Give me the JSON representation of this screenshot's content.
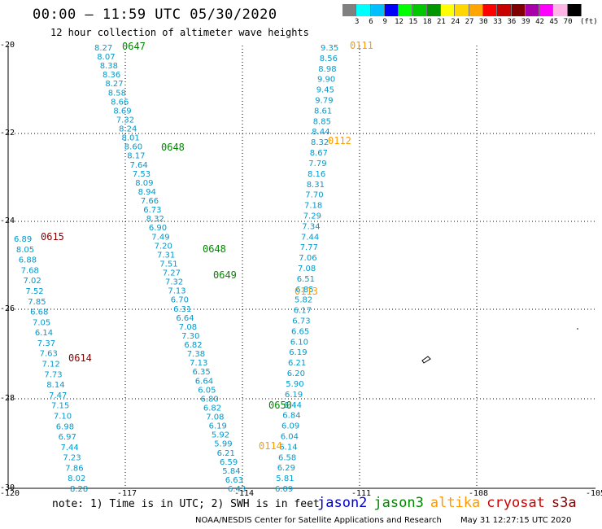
{
  "header": {
    "title": "00:00 — 11:59 UTC 05/30/2020",
    "subtitle": "12 hour collection of altimeter wave heights"
  },
  "colorbar": {
    "unit": "(ft)",
    "ticks": [
      "3",
      "6",
      "9",
      "12",
      "15",
      "18",
      "21",
      "24",
      "27",
      "30",
      "33",
      "36",
      "39",
      "42",
      "45",
      "70"
    ],
    "colors": [
      "#808080",
      "#00ffff",
      "#00bfff",
      "#0000ff",
      "#00ff00",
      "#00c800",
      "#009600",
      "#ffff00",
      "#ffd700",
      "#ffa500",
      "#ff0000",
      "#c80000",
      "#800000",
      "#aa00aa",
      "#ff00ff",
      "#ffb6e6",
      "#000000"
    ]
  },
  "axes": {
    "lat_labels": [
      "-20",
      "-22",
      "-24",
      "-26",
      "-28",
      "-30"
    ],
    "lon_labels": [
      "-120",
      "-117",
      "-114",
      "-111",
      "-108",
      "-105"
    ]
  },
  "footer": {
    "note": "note:  1) Time is in UTC;  2) SWH is in feet",
    "legend": [
      {
        "label": "jason2",
        "color": "#0000cc"
      },
      {
        "label": "jason3",
        "color": "#008800"
      },
      {
        "label": "altika",
        "color": "#ff9900"
      },
      {
        "label": "cryosat",
        "color": "#cc0000"
      },
      {
        "label": "s3a",
        "color": "#880000"
      }
    ],
    "credit": "NOAA/NESDIS Center for Satellite Applications and Research",
    "timestamp": "May 31 12:27:15 UTC 2020"
  },
  "tracks": [
    {
      "id": "0647-track",
      "color": "#0099cc",
      "values": [
        "8.27",
        "8.07",
        "8.38",
        "8.36",
        "8.27",
        "8.58",
        "8.66",
        "8.69",
        "7.32",
        "8.24",
        "8.01",
        "8.60",
        "8.17",
        "7.64",
        "7.53",
        "8.09",
        "8.94",
        "7.66",
        "6.73",
        "8.32",
        "6.90",
        "7.49",
        "7.20",
        "7.31",
        "7.51",
        "7.27",
        "7.32",
        "7.13",
        "6.70",
        "6.31",
        "6.64",
        "7.08",
        "7.30",
        "6.82",
        "7.38",
        "7.13",
        "6.35",
        "6.64",
        "6.05",
        "6.80",
        "6.82",
        "7.08",
        "6.19",
        "5.92",
        "5.99",
        "6.21",
        "6.59",
        "5.84",
        "6.63",
        "6.43"
      ]
    },
    {
      "id": "0111-track",
      "color": "#0099cc",
      "values": [
        "9.35",
        "8.56",
        "8.98",
        "9.90",
        "9.45",
        "9.79",
        "8.61",
        "8.85",
        "8.44",
        "8.32",
        "8.67",
        "7.79",
        "8.16",
        "8.31",
        "7.70",
        "7.18",
        "7.29",
        "7.34",
        "7.44",
        "7.77",
        "7.06",
        "7.08",
        "6.51",
        "6.85",
        "5.82",
        "6.17",
        "6.73",
        "6.65",
        "6.10",
        "6.19",
        "6.21",
        "6.20",
        "5.90",
        "6.19",
        "6.44",
        "6.84",
        "6.09",
        "6.04",
        "6.14",
        "6.58",
        "6.29",
        "5.81",
        "6.09"
      ]
    },
    {
      "id": "0615-track",
      "color": "#0099cc",
      "values": [
        "6.89",
        "8.05",
        "6.88",
        "7.68",
        "7.02",
        "7.52",
        "7.85",
        "6.68",
        "7.05",
        "6.14",
        "7.37",
        "7.63",
        "7.12",
        "7.73",
        "8.14",
        "7.47",
        "7.15",
        "7.10",
        "6.98",
        "6.97",
        "7.44",
        "7.23",
        "7.86",
        "8.02",
        "8.28"
      ]
    }
  ],
  "pass_labels": [
    {
      "text": "0647",
      "color": "#008800"
    },
    {
      "text": "0648",
      "color": "#008800"
    },
    {
      "text": "0648",
      "color": "#008800"
    },
    {
      "text": "0649",
      "color": "#008800"
    },
    {
      "text": "0650",
      "color": "#008800"
    },
    {
      "text": "0111",
      "color": "#ff9900"
    },
    {
      "text": "0112",
      "color": "#ff9900"
    },
    {
      "text": "0113",
      "color": "#ff9900"
    },
    {
      "text": "0114",
      "color": "#ff9900"
    },
    {
      "text": "0615",
      "color": "#880000"
    },
    {
      "text": "0614",
      "color": "#880000"
    }
  ]
}
